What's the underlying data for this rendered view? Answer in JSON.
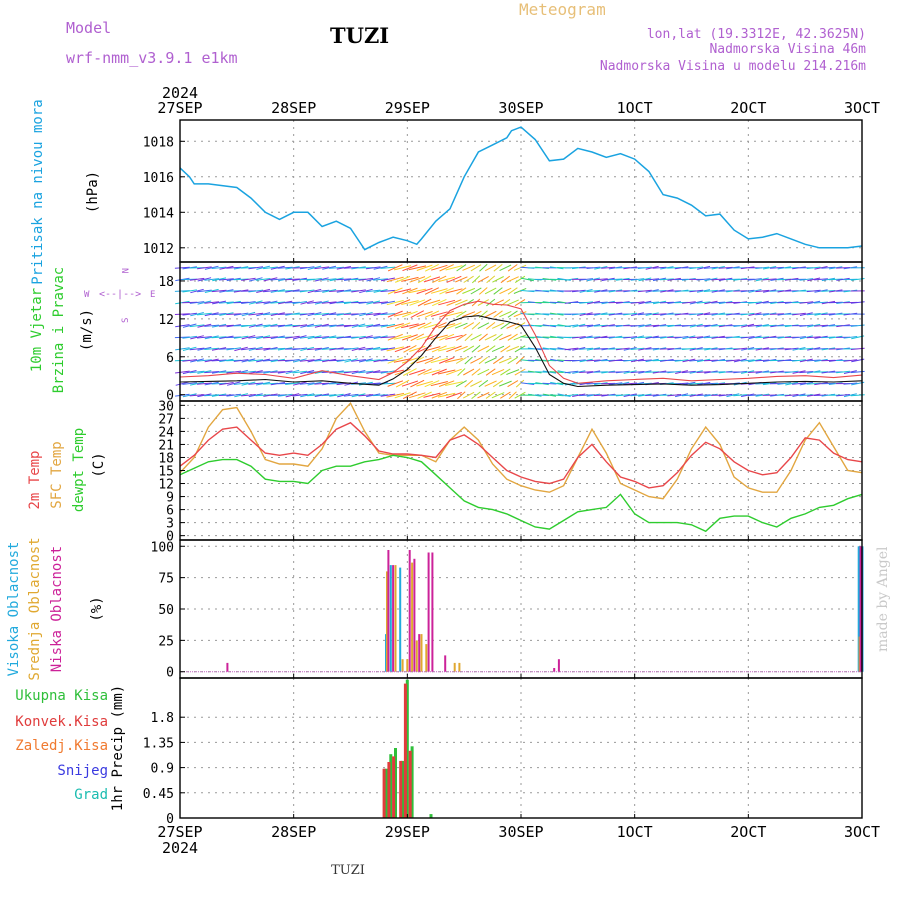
{
  "header": {
    "model_label": "Model",
    "model_name": "wrf-nmm_v3.9.1 e1km",
    "station": "TUZI",
    "product": "Meteogram",
    "lonlat": "lon,lat (19.3312E, 42.3625N)",
    "altitude": "Nadmorska Visina 46m",
    "model_altitude": "Nadmorska Visina u modelu 214.216m",
    "footer_station": "TUZI",
    "credit": "made by Angel"
  },
  "time_axis": {
    "year": "2024",
    "labels": [
      "27SEP",
      "28SEP",
      "29SEP",
      "30SEP",
      "1OCT",
      "2OCT",
      "3OCT"
    ]
  },
  "colors": {
    "pressure": "#1aa3e0",
    "temp2m": "#e8474a",
    "sfc": "#e2a640",
    "dewpt": "#2ecc2e",
    "high": "#22aadd",
    "mid": "#e0a830",
    "low": "#cc2299",
    "total": "#2fbf3a",
    "conv": "#e03c3c",
    "frozen": "#f07a30",
    "snow": "#3a3ae0",
    "grad": "#1abcb0"
  },
  "chart_data": [
    {
      "type": "line",
      "panel": "pressure",
      "ylabel": [
        "Pritisak na nivou mora",
        "(hPa)"
      ],
      "ylim": [
        1011.2,
        1019.2
      ],
      "yticks": [
        "1012",
        "1014",
        "1016",
        "1018"
      ],
      "grid": true,
      "series": [
        {
          "x": [
            0,
            2,
            3,
            6,
            12,
            15,
            18,
            21,
            24,
            27,
            30,
            33,
            36,
            38,
            39,
            42,
            44,
            45,
            48,
            50,
            51,
            54,
            57,
            60,
            63,
            66,
            69,
            70,
            72,
            75,
            78,
            81,
            84,
            87,
            90,
            93,
            96,
            99,
            102,
            105,
            108,
            111,
            114,
            117,
            120,
            123,
            126,
            129,
            132,
            135,
            138,
            141,
            144
          ],
          "y": [
            1016.5,
            1016.0,
            1015.6,
            1015.6,
            1015.4,
            1014.8,
            1014.0,
            1013.6,
            1014.0,
            1014.0,
            1013.2,
            1013.5,
            1013.1,
            1012.3,
            1011.9,
            1012.3,
            1012.5,
            1012.6,
            1012.4,
            1012.2,
            1012.5,
            1013.5,
            1014.2,
            1016.0,
            1017.4,
            1017.8,
            1018.2,
            1018.6,
            1018.8,
            1018.1,
            1016.9,
            1017.0,
            1017.6,
            1017.4,
            1017.1,
            1017.3,
            1017.0,
            1016.3,
            1015.0,
            1014.8,
            1014.4,
            1013.8,
            1013.9,
            1013.0,
            1012.5,
            1012.6,
            1012.8,
            1012.5,
            1012.2,
            1012.0,
            1012.0,
            1012.0,
            1012.1
          ]
        }
      ]
    },
    {
      "type": "line",
      "panel": "wind",
      "ylabel": [
        "10m Vjetar",
        "Brzina i Pravac",
        "(m/s)"
      ],
      "compass": {
        "north": "N",
        "west": "W",
        "east": "E",
        "south": "S"
      },
      "ylim": [
        -1,
        21
      ],
      "yticks": [
        "0",
        "6",
        "12",
        "18"
      ],
      "grid": true,
      "series": [
        {
          "name": "speed",
          "x": [
            0,
            6,
            12,
            18,
            24,
            30,
            36,
            42,
            45,
            48,
            51,
            54,
            57,
            60,
            63,
            66,
            69,
            72,
            75,
            78,
            81,
            84,
            90,
            96,
            102,
            108,
            114,
            120,
            126,
            132,
            138,
            144
          ],
          "y": [
            2.0,
            2.1,
            2.2,
            2.4,
            2.0,
            2.2,
            1.8,
            1.5,
            2.5,
            4.0,
            6.2,
            9.0,
            11.5,
            12.3,
            12.5,
            12.0,
            11.6,
            11.0,
            7.5,
            3.2,
            1.8,
            1.3,
            1.5,
            1.6,
            1.7,
            1.5,
            1.6,
            1.8,
            2.0,
            2.1,
            2.0,
            2.2
          ]
        },
        {
          "name": "gust",
          "x": [
            0,
            6,
            12,
            18,
            24,
            30,
            36,
            42,
            45,
            48,
            51,
            54,
            57,
            60,
            63,
            66,
            69,
            72,
            75,
            78,
            81,
            84,
            90,
            96,
            102,
            108,
            114,
            120,
            126,
            132,
            138,
            144
          ],
          "y": [
            2.8,
            3.0,
            3.4,
            3.2,
            2.6,
            3.8,
            3.0,
            2.4,
            3.5,
            5.2,
            7.5,
            10.8,
            13.3,
            14.3,
            14.8,
            14.3,
            14.2,
            13.6,
            9.5,
            4.6,
            2.6,
            1.8,
            2.2,
            2.4,
            2.6,
            2.2,
            2.4,
            2.6,
            2.9,
            3.0,
            2.7,
            3.1
          ]
        }
      ]
    },
    {
      "type": "line",
      "panel": "temperature",
      "ylabel": [
        "2m Temp",
        "SFC Temp",
        "dewpt Temp",
        "(C)"
      ],
      "ylim": [
        -1,
        31
      ],
      "yticks": [
        "0",
        "3",
        "6",
        "9",
        "12",
        "15",
        "18",
        "21",
        "24",
        "27",
        "30"
      ],
      "grid": true,
      "series": [
        {
          "name": "2m Temp",
          "x": [
            0,
            3,
            6,
            9,
            12,
            15,
            18,
            21,
            24,
            27,
            30,
            33,
            36,
            39,
            42,
            45,
            48,
            51,
            54,
            57,
            60,
            63,
            66,
            69,
            72,
            75,
            78,
            81,
            84,
            87,
            90,
            93,
            96,
            99,
            102,
            105,
            108,
            111,
            114,
            117,
            120,
            123,
            126,
            129,
            132,
            135,
            138,
            141,
            144
          ],
          "y": [
            16.0,
            18.5,
            22.0,
            24.5,
            25.0,
            22.0,
            19.0,
            18.5,
            19.0,
            18.5,
            21.0,
            24.5,
            26.0,
            23.0,
            19.5,
            18.8,
            18.8,
            18.5,
            18.0,
            22.0,
            23.2,
            21.0,
            18.0,
            15.0,
            13.5,
            12.5,
            12.0,
            13.0,
            18.0,
            21.0,
            17.0,
            13.5,
            12.5,
            11.0,
            11.5,
            14.5,
            18.5,
            21.5,
            20.0,
            17.0,
            15.0,
            14.0,
            14.5,
            18.0,
            22.5,
            22.0,
            19.0,
            17.5,
            17.0
          ]
        },
        {
          "name": "SFC Temp",
          "x": [
            0,
            3,
            6,
            9,
            12,
            15,
            18,
            21,
            24,
            27,
            30,
            33,
            36,
            39,
            42,
            45,
            48,
            51,
            54,
            57,
            60,
            63,
            66,
            69,
            72,
            75,
            78,
            81,
            84,
            87,
            90,
            93,
            96,
            99,
            102,
            105,
            108,
            111,
            114,
            117,
            120,
            123,
            126,
            129,
            132,
            135,
            138,
            141,
            144
          ],
          "y": [
            14.5,
            18.0,
            25.0,
            29.0,
            29.5,
            24.0,
            17.5,
            16.5,
            16.5,
            16.0,
            20.0,
            27.0,
            30.5,
            24.0,
            19.0,
            18.5,
            18.5,
            18.5,
            17.0,
            22.0,
            25.0,
            22.0,
            16.5,
            13.0,
            11.5,
            10.5,
            10.0,
            11.5,
            18.0,
            24.5,
            19.0,
            12.0,
            10.5,
            9.0,
            8.5,
            13.0,
            20.0,
            25.0,
            21.0,
            13.5,
            11.0,
            10.0,
            10.0,
            15.0,
            22.0,
            26.0,
            20.5,
            15.0,
            14.5
          ]
        },
        {
          "name": "dewpt Temp",
          "x": [
            0,
            3,
            6,
            9,
            12,
            15,
            18,
            21,
            24,
            27,
            30,
            33,
            36,
            39,
            42,
            45,
            48,
            51,
            54,
            57,
            60,
            63,
            66,
            69,
            72,
            75,
            78,
            81,
            84,
            87,
            90,
            93,
            96,
            99,
            102,
            105,
            108,
            111,
            114,
            117,
            120,
            123,
            126,
            129,
            132,
            135,
            138,
            141,
            144
          ],
          "y": [
            14.0,
            15.5,
            17.0,
            17.5,
            17.5,
            16.0,
            13.0,
            12.5,
            12.5,
            12.0,
            15.0,
            16.0,
            16.0,
            17.0,
            17.5,
            18.5,
            18.0,
            17.0,
            14.0,
            11.0,
            8.0,
            6.5,
            6.0,
            5.0,
            3.5,
            2.0,
            1.5,
            3.5,
            5.5,
            6.0,
            6.5,
            9.5,
            5.0,
            3.0,
            3.0,
            3.0,
            2.5,
            1.0,
            4.0,
            4.5,
            4.5,
            3.0,
            2.0,
            4.0,
            5.0,
            6.5,
            7.0,
            8.5,
            9.5
          ]
        }
      ]
    },
    {
      "type": "bar",
      "panel": "cloud",
      "ylabel": [
        "Visoka Oblacnost",
        "Srednja Oblacnost",
        "Niska Oblacnost",
        "(%)"
      ],
      "ylim": [
        -5,
        105
      ],
      "yticks": [
        "0",
        "25",
        "50",
        "75",
        "100"
      ],
      "grid": true,
      "series": [
        {
          "name": "Visoka Oblacnost",
          "x": [
            43.5,
            44.5,
            46.5,
            143.4,
            144.0
          ],
          "y": [
            30,
            85,
            83,
            100,
            100
          ]
        },
        {
          "name": "Srednja Oblacnost",
          "x": [
            43.7,
            45.5,
            47.0,
            48.0,
            49.0,
            50.0,
            51.0,
            52.0,
            58.0,
            59.0,
            143.6
          ],
          "y": [
            80,
            85,
            10,
            10,
            87,
            25,
            30,
            22,
            7,
            7,
            28
          ]
        },
        {
          "name": "Niska Oblacnost",
          "x": [
            10.0,
            44.0,
            45.0,
            48.5,
            49.5,
            50.5,
            52.5,
            53.3,
            56.0,
            79.0,
            80.0,
            143.8
          ],
          "y": [
            7,
            97,
            85,
            97,
            90,
            30,
            95,
            95,
            13,
            3,
            10,
            100
          ]
        }
      ]
    },
    {
      "type": "bar",
      "panel": "precip",
      "ylabel": [
        "1hr Precip (mm)"
      ],
      "legend": [
        "Ukupna Kisa",
        "Konvek.Kisa",
        "Zaledj.Kisa",
        "Snijeg",
        "Grad"
      ],
      "ylim": [
        0,
        2.5
      ],
      "yticks": [
        "0",
        "0.45",
        "0.9",
        "1.35",
        "1.8"
      ],
      "grid": true,
      "series": [
        {
          "name": "Ukupna Kisa",
          "x": [
            43.5,
            44.5,
            45.5,
            47.0,
            48.0,
            49.0,
            53.0
          ],
          "y": [
            0.88,
            1.14,
            1.25,
            1.02,
            2.47,
            1.28,
            0.07
          ]
        },
        {
          "name": "Konvek.Kisa",
          "x": [
            43.1,
            44.1,
            45.1,
            46.6,
            47.6,
            48.6
          ],
          "y": [
            0.88,
            1.0,
            1.1,
            1.02,
            2.4,
            1.2
          ]
        }
      ]
    }
  ]
}
